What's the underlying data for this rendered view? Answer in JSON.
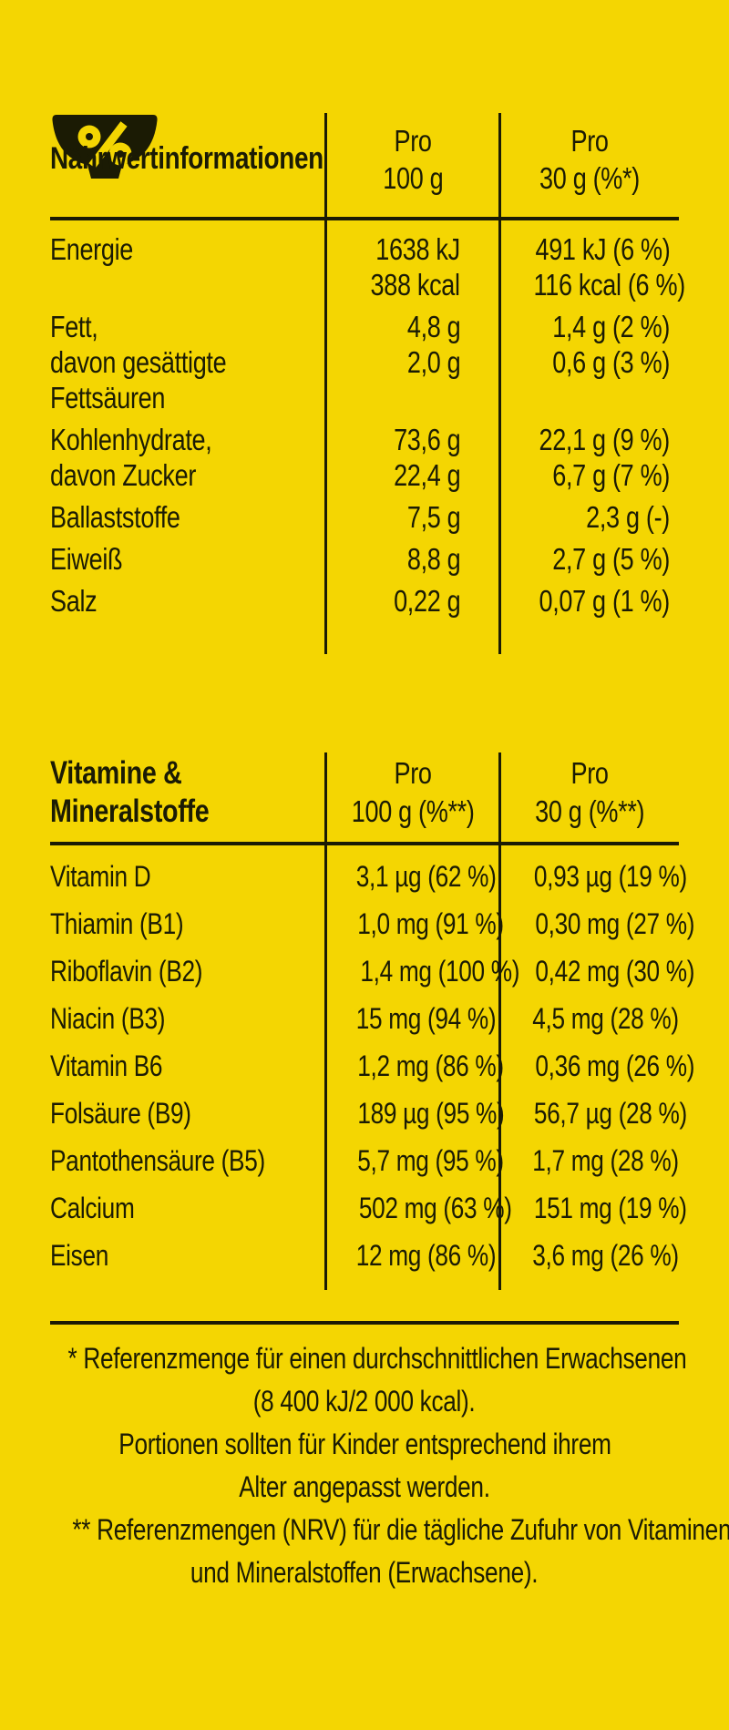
{
  "theme": {
    "background_yellow": "#F4D602",
    "ink_black": "#1B1B04"
  },
  "logo": {
    "icon": "percent-bowl-icon"
  },
  "nutrition_table": {
    "title": "Nährwertinformationen",
    "col2_header": [
      "Pro",
      "100 g"
    ],
    "col3_header": [
      "Pro",
      "30 g (%*)"
    ],
    "rows": [
      {
        "label": [
          "Energie"
        ],
        "per100": [
          "1638 kJ",
          "388 kcal"
        ],
        "per30": [
          "491 kJ (6 %)",
          "116 kcal (6 %)"
        ]
      },
      {
        "label": [
          "Fett,",
          "davon gesättigte",
          "Fettsäuren"
        ],
        "per100": [
          "4,8 g",
          "2,0 g"
        ],
        "per30": [
          "1,4 g (2 %)",
          "0,6 g (3 %)"
        ]
      },
      {
        "label": [
          "Kohlenhydrate,",
          "davon Zucker"
        ],
        "per100": [
          "73,6 g",
          "22,4 g"
        ],
        "per30": [
          "22,1 g (9 %)",
          "6,7 g (7 %)"
        ]
      },
      {
        "label": [
          "Ballaststoffe"
        ],
        "per100": [
          "7,5 g"
        ],
        "per30": [
          "2,3 g (-)"
        ]
      },
      {
        "label": [
          "Eiweiß"
        ],
        "per100": [
          "8,8 g"
        ],
        "per30": [
          "2,7 g (5 %)"
        ]
      },
      {
        "label": [
          "Salz"
        ],
        "per100": [
          "0,22 g"
        ],
        "per30": [
          "0,07 g (1 %)"
        ]
      }
    ]
  },
  "vitamins_table": {
    "title": [
      "Vitamine &",
      "Mineralstoffe"
    ],
    "col2_header": [
      "Pro",
      "100 g (%**)"
    ],
    "col3_header": [
      "Pro",
      "30 g (%**)"
    ],
    "rows": [
      {
        "label": "Vitamin D",
        "per100": "3,1 µg (62 %)",
        "per30": "0,93 µg (19 %)"
      },
      {
        "label": "Thiamin (B1)",
        "per100": "1,0 mg (91 %)",
        "per30": "0,30 mg (27 %)"
      },
      {
        "label": "Riboflavin (B2)",
        "per100": "1,4 mg (100 %)",
        "per30": "0,42 mg (30 %)"
      },
      {
        "label": "Niacin (B3)",
        "per100": "15 mg (94 %)",
        "per30": "4,5 mg (28 %)"
      },
      {
        "label": "Vitamin B6",
        "per100": "1,2 mg (86 %)",
        "per30": "0,36 mg (26 %)"
      },
      {
        "label": "Folsäure (B9)",
        "per100": "189 µg (95 %)",
        "per30": "56,7 µg (28 %)"
      },
      {
        "label": "Pantothensäure (B5)",
        "per100": "5,7 mg (95 %)",
        "per30": "1,7 mg (28 %)"
      },
      {
        "label": "Calcium",
        "per100": "502 mg (63 %)",
        "per30": "151 mg (19 %)"
      },
      {
        "label": "Eisen",
        "per100": "12 mg (86 %)",
        "per30": "3,6 mg (26 %)"
      }
    ]
  },
  "footnotes": {
    "lines": [
      "* Referenzmenge für einen durchschnittlichen Erwachsenen",
      "(8 400 kJ/2 000 kcal).",
      "Portionen sollten für Kinder entsprechend ihrem",
      "Alter angepasst werden.",
      "** Referenzmengen (NRV) für die tägliche Zufuhr von Vitaminen",
      "und Mineralstoffen (Erwachsene)."
    ]
  }
}
